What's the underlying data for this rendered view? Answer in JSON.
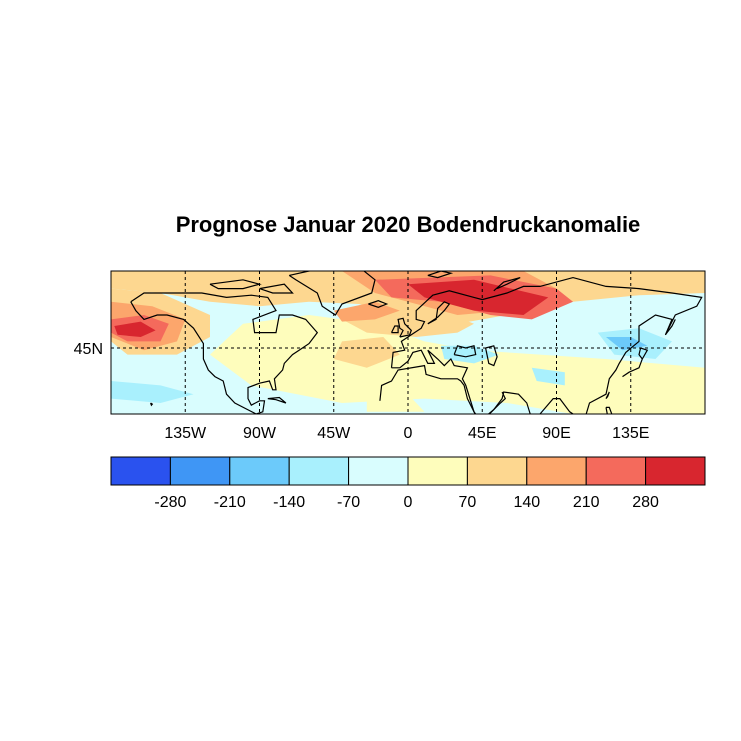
{
  "title": "Prognose Januar 2020 Bodendruckanomalie",
  "map": {
    "lat_tick_labels": [
      {
        "label": "45N",
        "lat": 45
      }
    ],
    "lon_tick_labels": [
      {
        "label": "135W",
        "lon": -135
      },
      {
        "label": "90W",
        "lon": -90
      },
      {
        "label": "45W",
        "lon": -45
      },
      {
        "label": "0",
        "lon": 0
      },
      {
        "label": "45E",
        "lon": 45
      },
      {
        "label": "90E",
        "lon": 90
      },
      {
        "label": "135E",
        "lon": 135
      }
    ]
  },
  "colorbar": {
    "bins": [
      {
        "color": "#2a52ef"
      },
      {
        "color": "#3f96f5"
      },
      {
        "color": "#6ccafa"
      },
      {
        "color": "#a9f0fd"
      },
      {
        "color": "#d9fdfe"
      },
      {
        "color": "#fefdbc"
      },
      {
        "color": "#fdd790"
      },
      {
        "color": "#fca66c"
      },
      {
        "color": "#f46a5c"
      },
      {
        "color": "#d8262f"
      }
    ],
    "tick_labels": [
      "-280",
      "-210",
      "-140",
      "-70",
      "0",
      "70",
      "140",
      "210",
      "280"
    ]
  }
}
